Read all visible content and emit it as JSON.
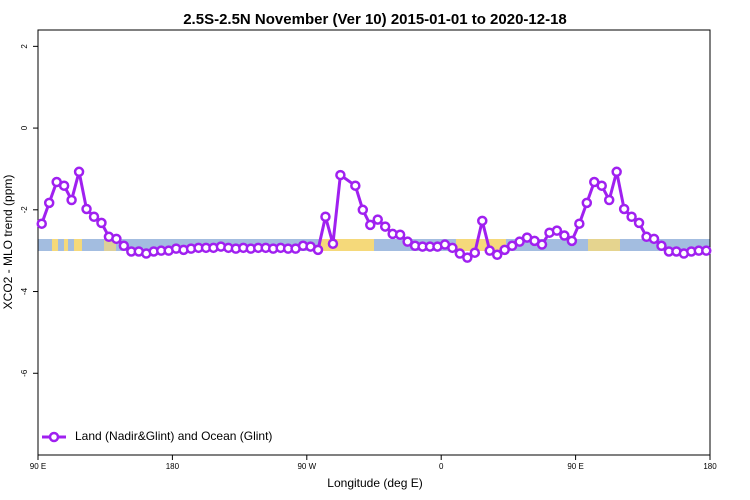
{
  "chart_data": {
    "type": "line",
    "title": "2.5S-2.5N November (Ver 10)   2015-01-01 to 2020-12-18",
    "x_label": "Longitude (deg E)",
    "y_label": "XCO2 - MLO trend (ppm)",
    "xlim": [
      90,
      540
    ],
    "xticks": [
      {
        "value": 90,
        "label": "90 E"
      },
      180,
      {
        "value": 270,
        "label": "90 W"
      },
      {
        "value": 360,
        "label": "0"
      },
      {
        "value": 450,
        "label": "90 E"
      },
      {
        "value": 540,
        "label": "180"
      }
    ],
    "ylim": [
      -8,
      2.4
    ],
    "yticks": [
      -6,
      -4,
      -2,
      0,
      2
    ],
    "legend": "bottom-left",
    "series": [
      {
        "name": "Land (Nadir&Glint) and Ocean (Glint)",
        "color": "#a020f0",
        "x": [
          92.5,
          97.5,
          102.5,
          107.5,
          112.5,
          117.5,
          122.5,
          127.5,
          132.5,
          137.5,
          142.5,
          147.5,
          152.5,
          157.5,
          162.5,
          167.5,
          172.5,
          177.5,
          182.5,
          187.5,
          192.5,
          197.5,
          202.5,
          207.5,
          212.5,
          217.5,
          222.5,
          227.5,
          232.5,
          237.5,
          242.5,
          247.5,
          252.5,
          257.5,
          262.5,
          267.5,
          272.5,
          277.5,
          282.5,
          287.5,
          292.5,
          302.5,
          307.5,
          312.5,
          317.5,
          322.5,
          327.5,
          332.5,
          337.5,
          342.5,
          347.5,
          352.5,
          357.5,
          362.5,
          367.5,
          372.5,
          377.5,
          382.5,
          387.5,
          392.5,
          397.5,
          402.5,
          407.5,
          412.5,
          417.5,
          422.5,
          427.5,
          432.5,
          437.5,
          442.5,
          447.5,
          452.5,
          457.5,
          462.5,
          467.5,
          472.5,
          477.5,
          482.5,
          487.5,
          492.5,
          497.5,
          502.5,
          507.5,
          512.5,
          517.5,
          522.5,
          527.5,
          532.5,
          537.5
        ],
        "values": [
          -2.34,
          -1.83,
          -1.32,
          -1.41,
          -1.76,
          -1.07,
          -1.98,
          -2.17,
          -2.32,
          -2.66,
          -2.71,
          -2.88,
          -3.02,
          -3.02,
          -3.07,
          -3.02,
          -3.0,
          -3.0,
          -2.95,
          -2.98,
          -2.95,
          -2.93,
          -2.93,
          -2.93,
          -2.9,
          -2.93,
          -2.95,
          -2.93,
          -2.95,
          -2.93,
          -2.93,
          -2.95,
          -2.93,
          -2.95,
          -2.95,
          -2.88,
          -2.9,
          -2.98,
          -2.17,
          -2.83,
          -1.15,
          -1.41,
          -2.0,
          -2.37,
          -2.24,
          -2.41,
          -2.59,
          -2.61,
          -2.78,
          -2.88,
          -2.9,
          -2.9,
          -2.9,
          -2.85,
          -2.93,
          -3.07,
          -3.17,
          -3.05,
          -2.27,
          -3.0,
          -3.1,
          -2.98,
          -2.88,
          -2.78,
          -2.68,
          -2.76,
          -2.85,
          -2.56,
          -2.51,
          -2.63,
          -2.76,
          -2.34,
          -1.83,
          -1.32,
          -1.41,
          -1.76,
          -1.07,
          -1.98,
          -2.17,
          -2.32,
          -2.66,
          -2.71,
          -2.88,
          -3.02,
          -3.02,
          -3.07,
          -3.02,
          -3.0,
          -3.0
        ]
      }
    ]
  }
}
